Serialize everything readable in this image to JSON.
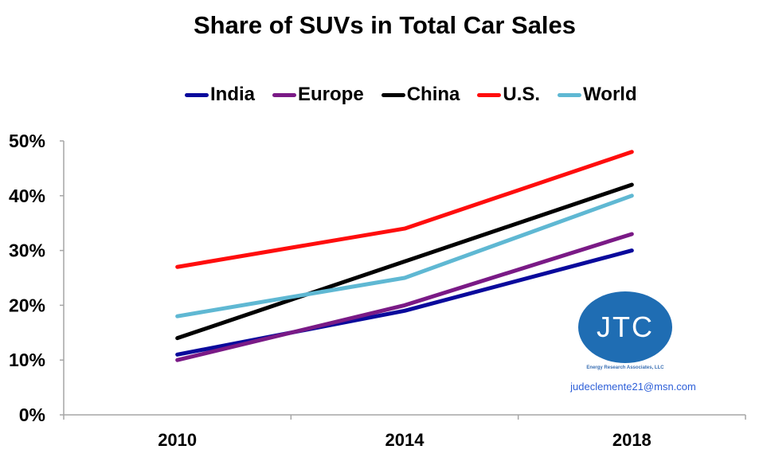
{
  "chart_data": {
    "type": "line",
    "title": "Share of SUVs in Total Car Sales",
    "xlabel": "",
    "ylabel": "",
    "categories": [
      "2010",
      "2014",
      "2018"
    ],
    "ylim": [
      0,
      50
    ],
    "yticks": [
      "0%",
      "10%",
      "20%",
      "30%",
      "40%",
      "50%"
    ],
    "ytick_values": [
      0,
      10,
      20,
      30,
      40,
      50
    ],
    "grid": false,
    "legend_position": "top",
    "series": [
      {
        "name": "India",
        "color": "#0a0a9c",
        "values": [
          11,
          19,
          30
        ]
      },
      {
        "name": "Europe",
        "color": "#7a1a86",
        "values": [
          10,
          20,
          33
        ]
      },
      {
        "name": "China",
        "color": "#000000",
        "values": [
          14,
          28,
          42
        ]
      },
      {
        "name": "U.S.",
        "color": "#ff0d0d",
        "values": [
          27,
          34,
          48
        ]
      },
      {
        "name": "World",
        "color": "#5fb8d3",
        "values": [
          18,
          25,
          40
        ]
      }
    ]
  },
  "watermark": {
    "logo_text": "JTC",
    "subtitle": "Energy Research Associates, LLC",
    "email": "judeclemente21@msn.com"
  }
}
